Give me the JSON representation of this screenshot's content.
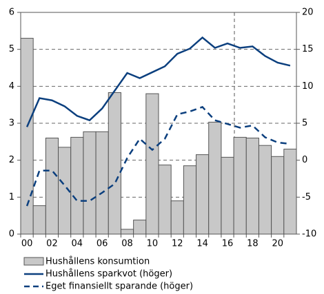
{
  "chart_data": {
    "type": "bar",
    "categories": [
      "00",
      null,
      "02",
      null,
      "04",
      null,
      "06",
      null,
      "08",
      null,
      "10",
      null,
      "12",
      null,
      "14",
      null,
      "16",
      null,
      "18",
      null,
      "20",
      null
    ],
    "series": [
      {
        "name": "Hushållens konsumtion",
        "type": "bar",
        "color": "#c8c8c8",
        "axis": "y",
        "values": [
          5.3,
          0.77,
          2.6,
          2.35,
          2.62,
          2.77,
          2.77,
          3.83,
          0.13,
          0.38,
          3.8,
          1.87,
          0.9,
          1.85,
          2.15,
          3.03,
          2.08,
          2.62,
          2.6,
          2.4,
          2.1,
          2.3
        ]
      },
      {
        "name": "Hushållens sparkvot (höger)",
        "type": "line",
        "color": "#0b3f7e",
        "axis": "y2",
        "dashed": false,
        "values": [
          4.5,
          8.4,
          8.1,
          7.3,
          6.0,
          5.4,
          7.0,
          9.4,
          11.8,
          11.1,
          11.9,
          12.7,
          14.4,
          15.1,
          16.6,
          15.2,
          15.8,
          15.2,
          15.4,
          14.1,
          13.2,
          12.8
        ]
      },
      {
        "name": "Eget finansiellt sparande (höger)",
        "type": "line",
        "color": "#0b3f7e",
        "axis": "y2",
        "dashed": true,
        "values": [
          -6.2,
          -1.4,
          -1.4,
          -3.4,
          -5.5,
          -5.5,
          -4.4,
          -3.2,
          0.3,
          2.9,
          1.4,
          2.9,
          6.2,
          6.6,
          7.2,
          5.4,
          4.9,
          4.4,
          4.7,
          3.1,
          2.4,
          2.2
        ]
      }
    ],
    "ylim": [
      0,
      6
    ],
    "yticks": [
      0,
      1,
      2,
      3,
      4,
      5,
      6
    ],
    "y2lim": [
      -10,
      20
    ],
    "y2ticks": [
      -10,
      -5,
      0,
      5,
      10,
      15,
      20
    ],
    "grid": true
  }
}
